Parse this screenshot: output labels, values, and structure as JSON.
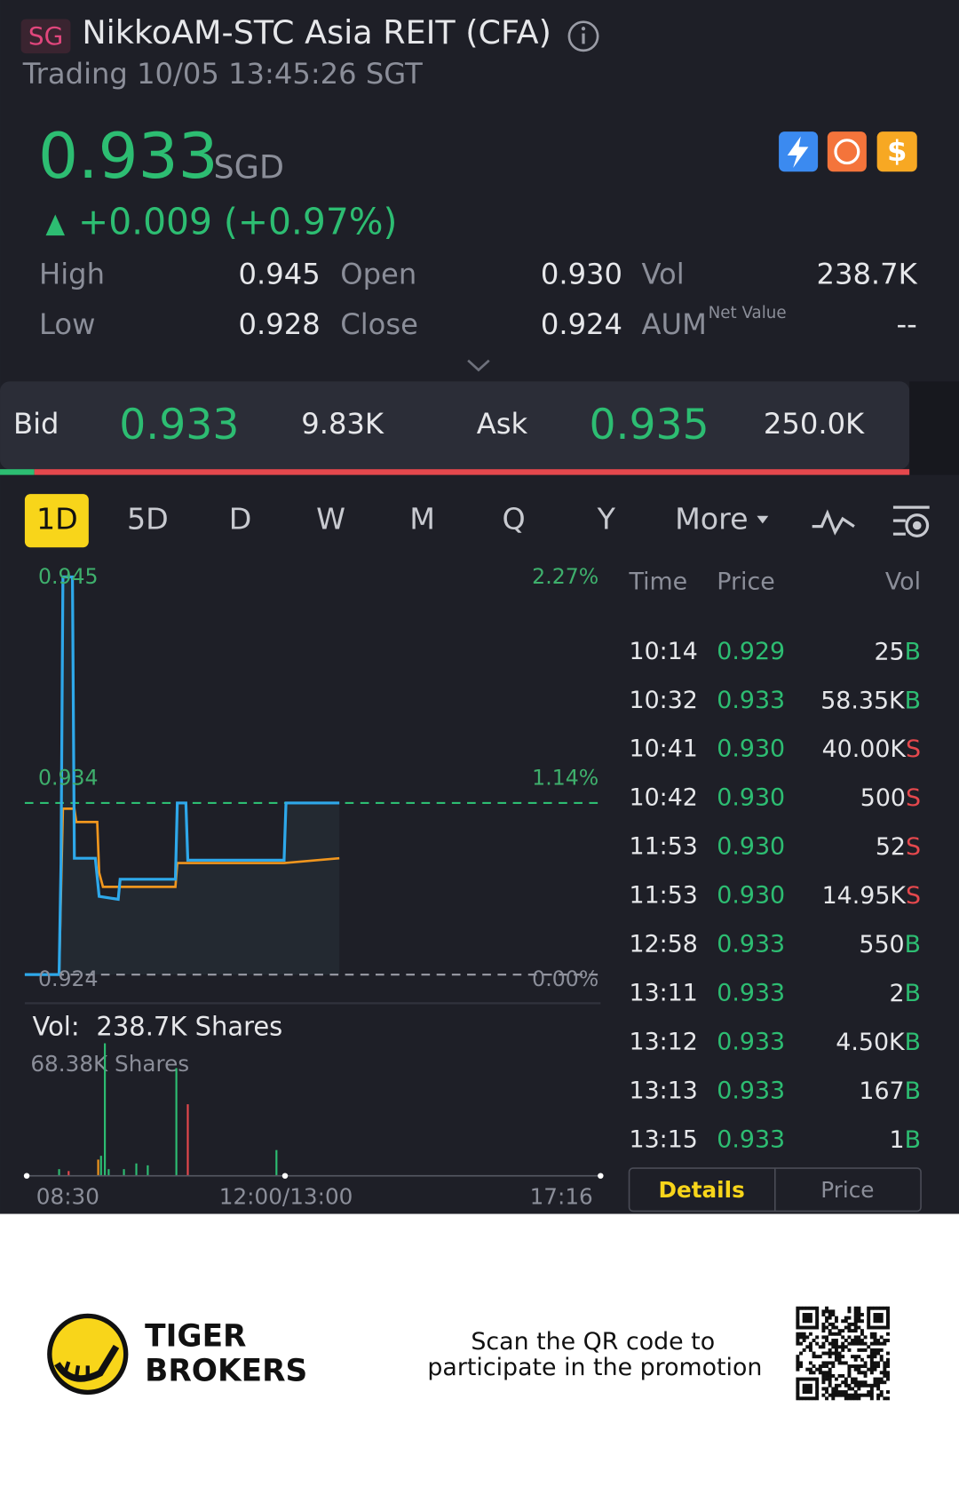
{
  "header": {
    "market": "SG",
    "title": "NikkoAM-STC Asia REIT (CFA)",
    "status": "Trading 10/05 13:45:26 SGT"
  },
  "quote": {
    "price": "0.933",
    "currency": "SGD",
    "change": "+0.009 (+0.97%)"
  },
  "stats": [
    {
      "label": "High",
      "value": "0.945"
    },
    {
      "label": "Open",
      "value": "0.930"
    },
    {
      "label": "Vol",
      "value": "238.7K"
    },
    {
      "label": "Low",
      "value": "0.928"
    },
    {
      "label": "Close",
      "value": "0.924"
    },
    {
      "label": "AUM",
      "note": "Net Value",
      "value": "--"
    }
  ],
  "bidask": {
    "bid_label": "Bid",
    "bid": "0.933",
    "bid_size": "9.83K",
    "ask_label": "Ask",
    "ask": "0.935",
    "ask_size": "250.0K"
  },
  "tabs": [
    "1D",
    "5D",
    "D",
    "W",
    "M",
    "Q",
    "Y",
    "More"
  ],
  "chart": {
    "price_labels": [
      "0.945",
      "0.934",
      "0.924"
    ],
    "pct_labels": [
      "2.27%",
      "1.14%",
      "0.00%"
    ],
    "vol_label": "Vol:",
    "vol_value": "238.7K Shares",
    "vol_max": "68.38K Shares",
    "time_labels": [
      "08:30",
      "12:00/13:00",
      "17:16"
    ]
  },
  "trades": {
    "headers": [
      "Time",
      "Price",
      "Vol"
    ],
    "rows": [
      [
        "10:14",
        "0.929",
        "25",
        "B"
      ],
      [
        "10:32",
        "0.933",
        "58.35K",
        "B"
      ],
      [
        "10:41",
        "0.930",
        "40.00K",
        "S"
      ],
      [
        "10:42",
        "0.930",
        "500",
        "S"
      ],
      [
        "11:53",
        "0.930",
        "52",
        "S"
      ],
      [
        "11:53",
        "0.930",
        "14.95K",
        "S"
      ],
      [
        "12:58",
        "0.933",
        "550",
        "B"
      ],
      [
        "13:11",
        "0.933",
        "2",
        "B"
      ],
      [
        "13:12",
        "0.933",
        "4.50K",
        "B"
      ],
      [
        "13:13",
        "0.933",
        "167",
        "B"
      ],
      [
        "13:15",
        "0.933",
        "1",
        "B"
      ]
    ]
  },
  "trade_tabs": [
    "Details",
    "Price"
  ],
  "footer": {
    "brand": [
      "TIGER",
      "BROKERS"
    ],
    "promo": [
      "Scan the QR code to",
      "participate in the promotion"
    ]
  }
}
